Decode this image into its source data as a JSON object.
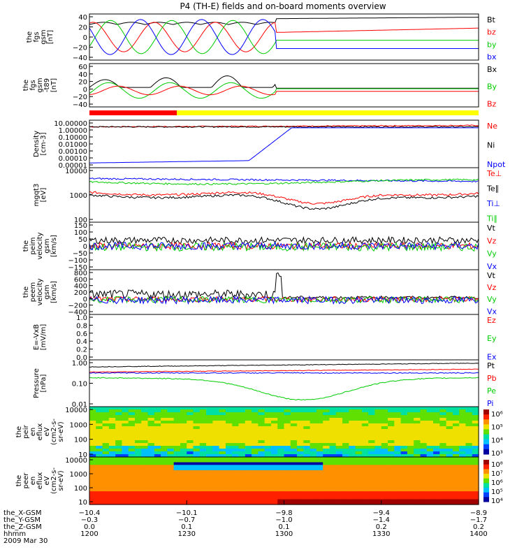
{
  "title": "P4 (TH-E) fields and on-board moments overview",
  "colors": {
    "black": "#000000",
    "red": "#ff0000",
    "green": "#00cc00",
    "blue": "#0000ff",
    "yellow": "#ffff00"
  },
  "chart_data": [
    {
      "type": "line",
      "id": "p1",
      "ylabel": [
        "the",
        "fgs",
        "gsm",
        "[nT]"
      ],
      "yticks": [
        "40",
        "20",
        "0",
        "−20",
        "−40"
      ],
      "ylim": [
        -40,
        40
      ],
      "series": [
        {
          "name": "Bt",
          "color": "black"
        },
        {
          "name": "bz",
          "color": "red"
        },
        {
          "name": "by",
          "color": "green"
        },
        {
          "name": "bx",
          "color": "blue"
        }
      ]
    },
    {
      "type": "line",
      "id": "p2",
      "ylabel": [
        "the",
        "fgs",
        "gsm",
        "-t89",
        "[nT]"
      ],
      "yticks": [
        "60",
        "40",
        "20",
        "0",
        "−20",
        "−40"
      ],
      "ylim": [
        -40,
        60
      ],
      "series": [
        {
          "name": "Bx",
          "color": "black"
        },
        {
          "name": "By",
          "color": "green"
        },
        {
          "name": "Bz",
          "color": "red"
        }
      ]
    },
    {
      "type": "line",
      "id": "p3",
      "ylabel": [
        "Density",
        "[cm-3]"
      ],
      "yticks": [
        "10.00000",
        "1.00000",
        "0.10000",
        "0.01000",
        "0.00100",
        "0.00010",
        "0.00001"
      ],
      "ylim": [
        1e-05,
        10
      ],
      "log": true,
      "series": [
        {
          "name": "Ne",
          "color": "red"
        },
        {
          "name": "Ni",
          "color": "black"
        },
        {
          "name": "Npot",
          "color": "blue"
        }
      ]
    },
    {
      "type": "line",
      "id": "p4",
      "ylabel": [
        "mgqt3",
        "[eV]"
      ],
      "yticks": [
        "10000",
        "1000",
        "100"
      ],
      "ylim": [
        100,
        10000
      ],
      "log": true,
      "series": [
        {
          "name": "Te⊥",
          "color": "red"
        },
        {
          "name": "Te∥",
          "color": "black"
        },
        {
          "name": "Ti⊥",
          "color": "blue"
        },
        {
          "name": "Ti∥",
          "color": "green"
        }
      ]
    },
    {
      "type": "line",
      "id": "p5",
      "ylabel": [
        "the",
        "peim",
        "velocity",
        "gsm",
        "[km/s]"
      ],
      "yticks": [
        "150",
        "100",
        "50",
        "0",
        "−50",
        "−100",
        "−150"
      ],
      "ylim": [
        -150,
        150
      ],
      "series": [
        {
          "name": "Vt",
          "color": "black"
        },
        {
          "name": "Vz",
          "color": "red"
        },
        {
          "name": "Vy",
          "color": "green"
        },
        {
          "name": "Vx",
          "color": "blue"
        }
      ]
    },
    {
      "type": "line",
      "id": "p6",
      "ylabel": [
        "the",
        "peem",
        "velocity",
        "gsm",
        "[km/s]"
      ],
      "yticks": [
        "800",
        "600",
        "400",
        "200",
        "0",
        "−200",
        "−400"
      ],
      "ylim": [
        -400,
        800
      ],
      "series": [
        {
          "name": "Vt",
          "color": "black"
        },
        {
          "name": "Vz",
          "color": "red"
        },
        {
          "name": "Vy",
          "color": "green"
        },
        {
          "name": "Vx",
          "color": "blue"
        }
      ]
    },
    {
      "type": "line",
      "id": "p7",
      "ylabel": [
        "E=-VxB",
        "[mV/m]"
      ],
      "yticks": [
        "1.0",
        "0.8",
        "0.6",
        "0.4",
        "0.2",
        "0.0"
      ],
      "ylim": [
        0,
        1
      ],
      "series": [
        {
          "name": "Ez",
          "color": "red"
        },
        {
          "name": "Ey",
          "color": "green"
        },
        {
          "name": "Ex",
          "color": "blue"
        }
      ]
    },
    {
      "type": "line",
      "id": "p8",
      "ylabel": [
        "Pressure",
        "[nPa]"
      ],
      "yticks": [
        "1.00",
        "0.10",
        "0.01"
      ],
      "ylim": [
        0.01,
        1
      ],
      "log": true,
      "series": [
        {
          "name": "Pt",
          "color": "black"
        },
        {
          "name": "Pb",
          "color": "red"
        },
        {
          "name": "Pe",
          "color": "green"
        },
        {
          "name": "Pi",
          "color": "blue"
        }
      ]
    },
    {
      "type": "heatmap",
      "id": "p9",
      "ylabel": [
        "the",
        "peir",
        "en",
        "eflux",
        "eV",
        "(cm2-s-",
        "sr-eV)"
      ],
      "yticks": [
        "10000",
        "1000",
        "100",
        "10"
      ],
      "colorbar": [
        "10⁶",
        "10⁵",
        "10⁴",
        "10³"
      ]
    },
    {
      "type": "heatmap",
      "id": "p10",
      "ylabel": [
        "the",
        "peer",
        "en",
        "eflux",
        "eV",
        "(cm2-s-",
        "sr-eV)"
      ],
      "yticks": [
        "10000",
        "1000",
        "100",
        "10"
      ],
      "colorbar": [
        "10⁸",
        "10⁷",
        "10⁶",
        "10⁵",
        "10⁴"
      ]
    }
  ],
  "xaxis": {
    "rows": [
      {
        "label": "the_X-GSM",
        "values": [
          "−10.4",
          "−10.1",
          "−9.8",
          "−9.4",
          "−8.9"
        ]
      },
      {
        "label": "the_Y-GSM",
        "values": [
          "−0.3",
          "−0.7",
          "−1.0",
          "−1.4",
          "−1.7"
        ]
      },
      {
        "label": "the_Z-GSM",
        "values": [
          "0.0",
          "0.1",
          "0.1",
          "0.2",
          "0.2"
        ]
      },
      {
        "label": "hhmm",
        "values": [
          "1200",
          "1230",
          "1300",
          "1330",
          "1400"
        ]
      }
    ],
    "date": "2009 Mar 30"
  }
}
